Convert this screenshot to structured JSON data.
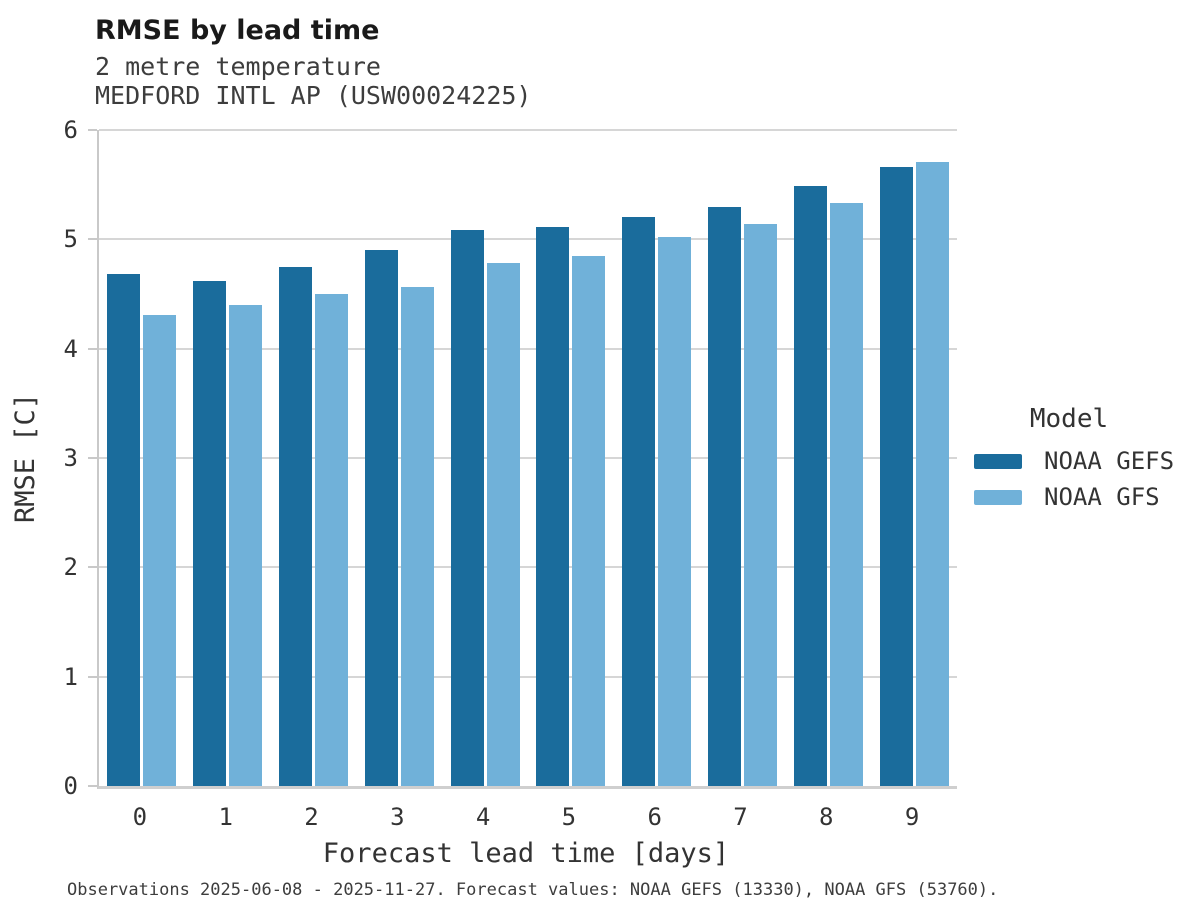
{
  "header": {
    "title": "RMSE by lead time",
    "subtitle_variable": "2 metre temperature",
    "subtitle_station": "MEDFORD INTL AP (USW00024225)"
  },
  "chart_data": {
    "type": "bar",
    "title": "RMSE by lead time",
    "subtitle": [
      "2 metre temperature",
      "MEDFORD INTL AP (USW00024225)"
    ],
    "categories": [
      "0",
      "1",
      "2",
      "3",
      "4",
      "5",
      "6",
      "7",
      "8",
      "9"
    ],
    "series": [
      {
        "name": "NOAA GEFS",
        "color": "#1a6c9c",
        "values": [
          4.68,
          4.62,
          4.75,
          4.9,
          5.09,
          5.11,
          5.2,
          5.3,
          5.49,
          5.66
        ]
      },
      {
        "name": "NOAA GFS",
        "color": "#70b1d9",
        "values": [
          4.31,
          4.4,
          4.5,
          4.56,
          4.78,
          4.85,
          5.02,
          5.14,
          5.33,
          5.71
        ]
      }
    ],
    "xlabel": "Forecast lead time [days]",
    "ylabel": "RMSE [C]",
    "ylim": [
      0,
      6
    ],
    "yticks": [
      0,
      1,
      2,
      3,
      4,
      5,
      6
    ],
    "grid": true,
    "legend_title": "Model",
    "legend_position": "right"
  },
  "legend": {
    "title": "Model",
    "items": [
      {
        "label": "NOAA GEFS",
        "color": "#1a6c9c"
      },
      {
        "label": "NOAA GFS",
        "color": "#70b1d9"
      }
    ]
  },
  "footer": {
    "note": "Observations 2025-06-08 - 2025-11-27. Forecast values: NOAA GEFS (13330), NOAA GFS (53760)."
  },
  "colors": {
    "gefs": "#1a6c9c",
    "gfs": "#70b1d9",
    "gridline": "#d6d6d6",
    "spine": "#c9c9c9",
    "text": "#333333"
  }
}
